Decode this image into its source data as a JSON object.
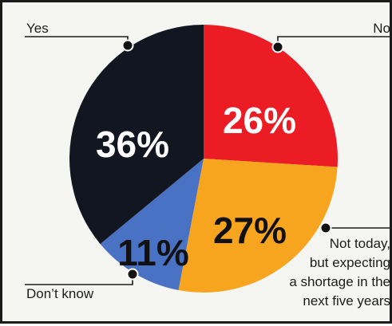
{
  "chart_data": {
    "type": "pie",
    "slices": [
      {
        "label": "No",
        "value": 26,
        "value_label": "26%",
        "color": "#ec1c24",
        "text_color": "#ffffff"
      },
      {
        "label": "Not today,\nbut expecting\na shortage in the\nnext five years",
        "value": 27,
        "value_label": "27%",
        "color": "#f7a51e",
        "text_color": "#111111"
      },
      {
        "label": "Don’t know",
        "value": 11,
        "value_label": "11%",
        "color": "#4a72c4",
        "text_color": "#111111"
      },
      {
        "label": "Yes",
        "value": 36,
        "value_label": "36%",
        "color": "#121621",
        "text_color": "#ffffff"
      }
    ],
    "start_angle_deg": 0,
    "direction": "clockwise",
    "legend": "callout-lines"
  }
}
